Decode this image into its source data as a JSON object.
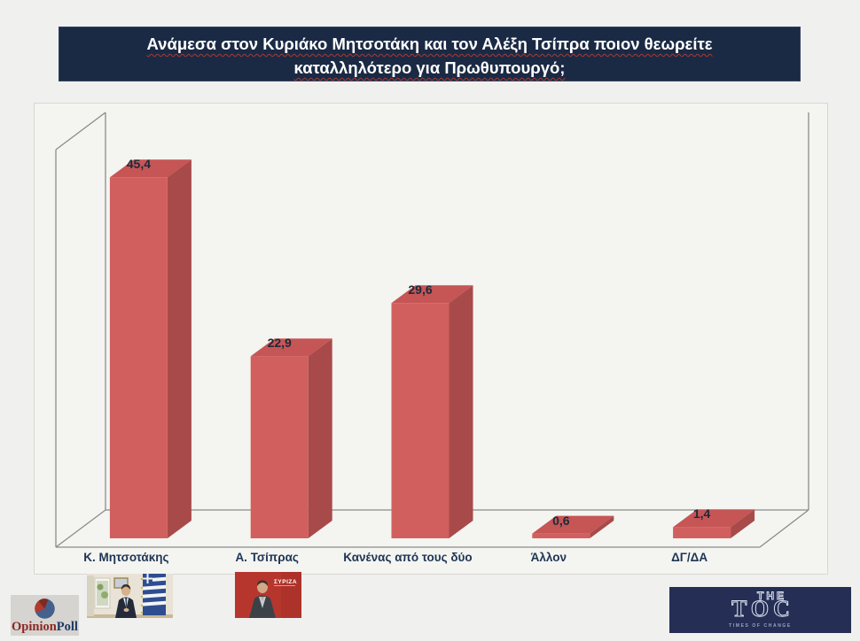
{
  "title": {
    "line1": "Ανάμεσα στον Κυριάκο Μητσοτάκη και τον Αλέξη Τσίπρα ποιον θεωρείτε",
    "line2": "καταλληλότερο για Πρωθυπουργό;"
  },
  "chart_data": {
    "type": "bar",
    "style": "3d-column",
    "title": "Ανάμεσα στον Κυριάκο Μητσοτάκη και τον Αλέξη Τσίπρα ποιον θεωρείτε καταλληλότερο για Πρωθυπουργό;",
    "categories": [
      "Κ. Μητσοτάκης",
      "Α. Τσίπρας",
      "Κανένας από τους δύο",
      "Άλλον",
      "ΔΓ/ΔΑ"
    ],
    "values": [
      45.4,
      22.9,
      29.6,
      0.6,
      1.4
    ],
    "value_labels": [
      "45,4",
      "22,9",
      "29,6",
      "0,6",
      "1,4"
    ],
    "xlabel": "",
    "ylabel": "",
    "ylim": [
      0,
      50
    ],
    "grid": false,
    "legend": false,
    "colors": {
      "front": "#d15f5e",
      "top": "#c65555",
      "side": "#a84a4a",
      "axis": "#8b8b8b",
      "value_label": "#1c2a3a",
      "category_label": "#1d3553"
    }
  },
  "branding": {
    "opinionpoll": {
      "word1": "Opinion",
      "word2": "Poll",
      "colors": {
        "word1": "#8c2723",
        "word2": "#1e3864",
        "pie_blue": "#44608c",
        "pie_red": "#b2392e",
        "box_bg": "#d6d4d0"
      }
    },
    "thetoc": {
      "the": "THE",
      "toc": "TOC",
      "tagline": "TIMES OF CHANGE",
      "bg": "#252f55"
    }
  },
  "photos": {
    "syriza_text": "ΣΥΡΙΖΑ"
  },
  "page": {
    "bg": "#f0f0ee",
    "title_bg": "#1b2a44",
    "plot_bg": "#f4f4f1"
  }
}
